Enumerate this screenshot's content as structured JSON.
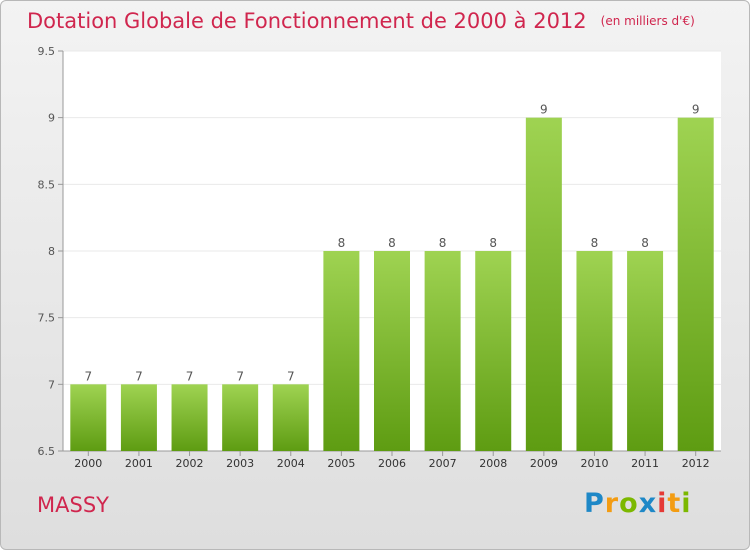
{
  "title": "Dotation Globale de Fonctionnement de 2000 à 2012",
  "unit_note": "(en milliers d'€)",
  "town": "MASSY",
  "logo": {
    "text": "Proxiti",
    "letters": [
      {
        "ch": "P",
        "color": "#1e88c7"
      },
      {
        "ch": "r",
        "color": "#f39c12"
      },
      {
        "ch": "o",
        "color": "#7cb800"
      },
      {
        "ch": "x",
        "color": "#1e88c7"
      },
      {
        "ch": "i",
        "color": "#e53935"
      },
      {
        "ch": "t",
        "color": "#f39c12"
      },
      {
        "ch": "i",
        "color": "#7cb800"
      }
    ]
  },
  "colors": {
    "title": "#d0264e",
    "bar_top": "#9fd352",
    "bar_bottom": "#5e9c12",
    "grid": "#e9e9e9",
    "axis": "#999999"
  },
  "chart_data": {
    "type": "bar",
    "categories": [
      "2000",
      "2001",
      "2002",
      "2003",
      "2004",
      "2005",
      "2006",
      "2007",
      "2008",
      "2009",
      "2010",
      "2011",
      "2012"
    ],
    "values": [
      7,
      7,
      7,
      7,
      7,
      8,
      8,
      8,
      8,
      9,
      8,
      8,
      9
    ],
    "data_labels": [
      "7",
      "7",
      "7",
      "7",
      "7",
      "8",
      "8",
      "8",
      "8",
      "9",
      "8",
      "8",
      "9"
    ],
    "ylim": [
      6.5,
      9.5
    ],
    "yticks": [
      6.5,
      7,
      7.5,
      8,
      8.5,
      9,
      9.5
    ],
    "ytick_labels": [
      "6.5",
      "7",
      "7.5",
      "8",
      "8.5",
      "9",
      "9.5"
    ],
    "grid": true,
    "xlabel": "",
    "ylabel": ""
  }
}
